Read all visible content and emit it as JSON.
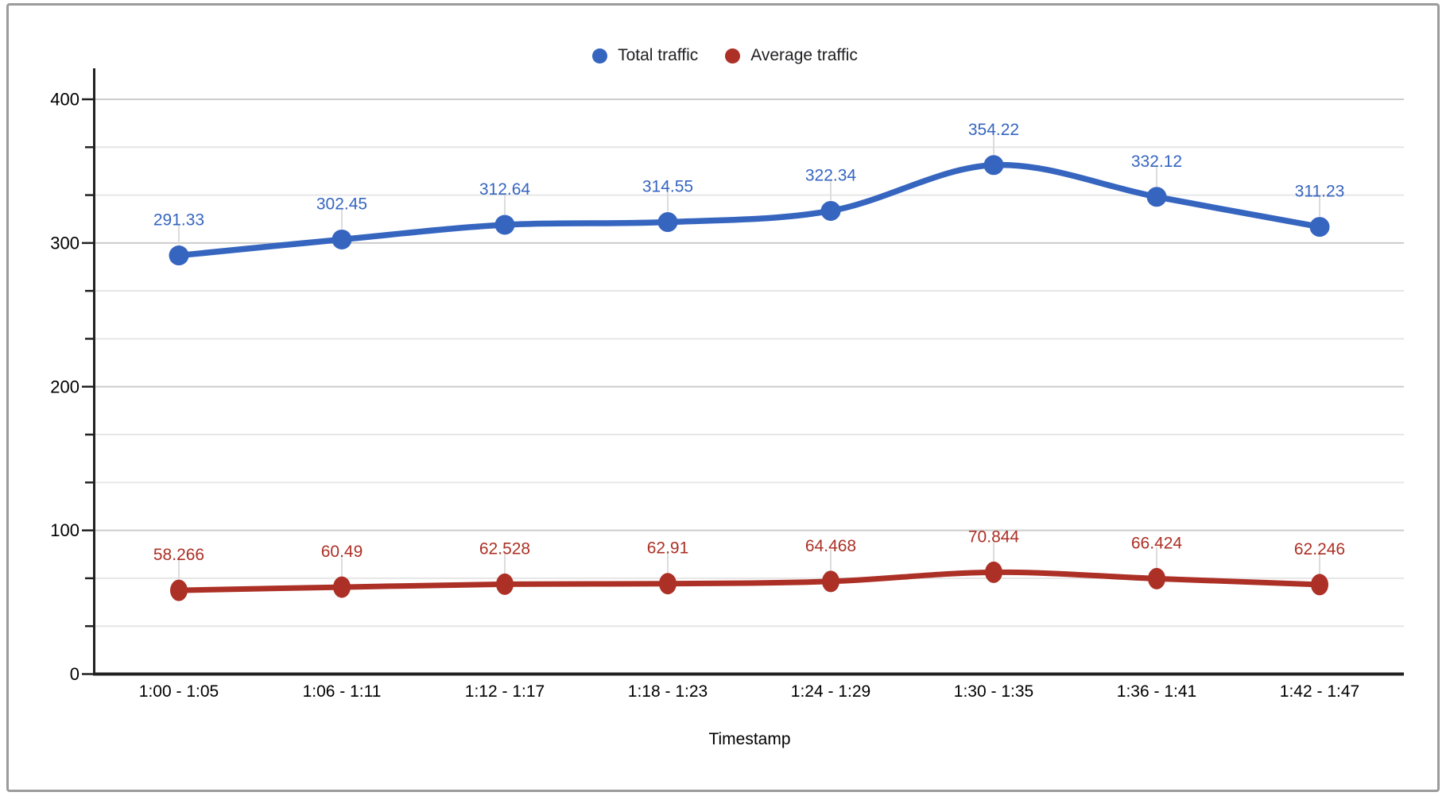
{
  "legend": {
    "items": [
      {
        "label": "Total traffic"
      },
      {
        "label": "Average traffic"
      }
    ]
  },
  "chart_data": {
    "type": "line",
    "smooth": true,
    "title": "",
    "xlabel": "Timestamp",
    "ylabel": "",
    "ylim": [
      0,
      400
    ],
    "y_major_ticks": [
      0,
      100,
      200,
      300,
      400
    ],
    "y_minor_divisions": 3,
    "grid": true,
    "legend_position": "top",
    "point_labels": true,
    "categories": [
      "1:00 - 1:05",
      "1:06 - 1:11",
      "1:12 - 1:17",
      "1:18 - 1:23",
      "1:24 - 1:29",
      "1:30 - 1:35",
      "1:36 - 1:41",
      "1:42 - 1:47"
    ],
    "series": [
      {
        "name": "Total traffic",
        "color": "#3665C0",
        "values": [
          291.33,
          302.45,
          312.64,
          314.55,
          322.34,
          354.22,
          332.12,
          311.23
        ]
      },
      {
        "name": "Average traffic",
        "color": "#AC3026",
        "values": [
          58.266,
          60.49,
          62.528,
          62.91,
          64.468,
          70.844,
          66.424,
          62.246
        ]
      }
    ]
  },
  "colors": {
    "background": "#ffffff",
    "frame_border": "#9b9b9b",
    "grid_major": "#cccccc",
    "grid_minor": "#e6e6e6",
    "axis": "#212121",
    "axis_text": "#000000",
    "legend_text": "#202124",
    "leader_line": "#dcdcdc"
  }
}
